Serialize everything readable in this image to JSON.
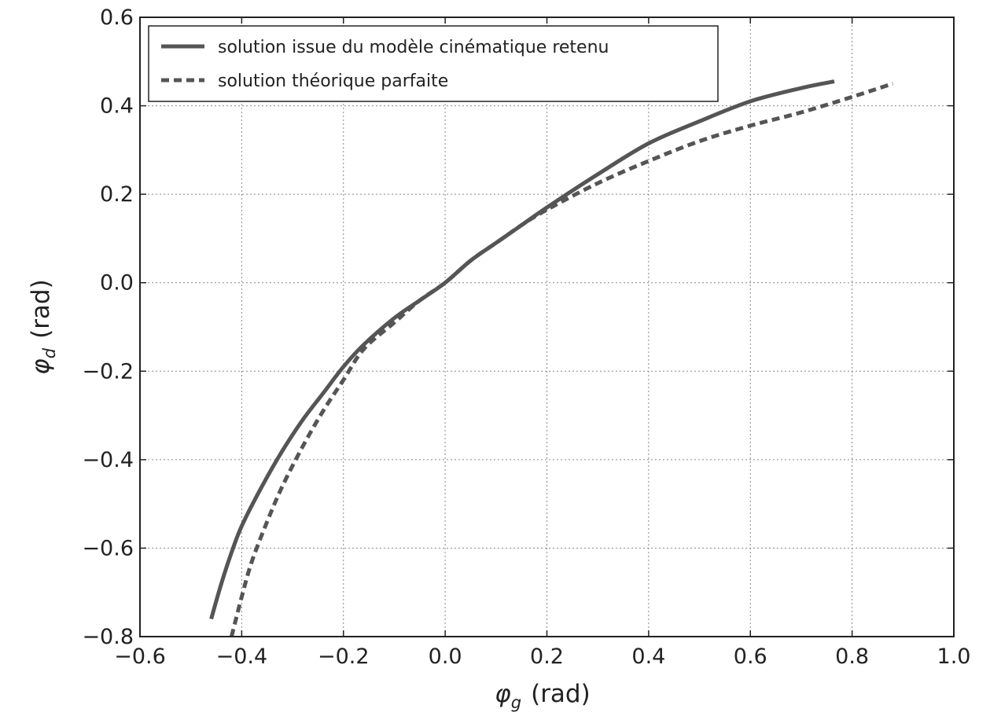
{
  "chart_data": {
    "type": "line",
    "title": "",
    "xlabel": {
      "symbol": "φ",
      "sub": "g",
      "unit": "(rad)"
    },
    "ylabel": {
      "symbol": "φ",
      "sub": "d",
      "unit": "(rad)"
    },
    "xlim": [
      -0.6,
      1.0
    ],
    "ylim": [
      -0.8,
      0.6
    ],
    "xticks": [
      -0.6,
      -0.4,
      -0.2,
      0.0,
      0.2,
      0.4,
      0.6,
      0.8,
      1.0
    ],
    "yticks": [
      -0.8,
      -0.6,
      -0.4,
      -0.2,
      0.0,
      0.2,
      0.4,
      0.6
    ],
    "xtick_labels": [
      "−0.6",
      "−0.4",
      "−0.2",
      "0.0",
      "0.2",
      "0.4",
      "0.6",
      "0.8",
      "1.0"
    ],
    "ytick_labels": [
      "−0.8",
      "−0.6",
      "−0.4",
      "−0.2",
      "0.0",
      "0.2",
      "0.4",
      "0.6"
    ],
    "grid": true,
    "legend_position": "upper-left",
    "series": [
      {
        "name": "solution issue du modèle cinématique retenu",
        "style": "solid",
        "color": "#555555",
        "x": [
          -0.46,
          -0.44,
          -0.42,
          -0.4,
          -0.36,
          -0.32,
          -0.28,
          -0.24,
          -0.2,
          -0.16,
          -0.1,
          -0.05,
          0.0,
          0.05,
          0.1,
          0.15,
          0.2,
          0.3,
          0.4,
          0.5,
          0.6,
          0.7,
          0.765
        ],
        "y": [
          -0.76,
          -0.68,
          -0.61,
          -0.55,
          -0.46,
          -0.38,
          -0.31,
          -0.25,
          -0.19,
          -0.14,
          -0.08,
          -0.04,
          0.0,
          0.05,
          0.09,
          0.13,
          0.17,
          0.245,
          0.315,
          0.365,
          0.41,
          0.44,
          0.455
        ]
      },
      {
        "name": "solution théorique parfaite",
        "style": "dashed",
        "color": "#555555",
        "x": [
          -0.42,
          -0.4,
          -0.38,
          -0.35,
          -0.32,
          -0.28,
          -0.24,
          -0.2,
          -0.16,
          -0.1,
          -0.05,
          0.0,
          0.05,
          0.1,
          0.15,
          0.2,
          0.3,
          0.4,
          0.5,
          0.6,
          0.7,
          0.8,
          0.88
        ],
        "y": [
          -0.8,
          -0.71,
          -0.63,
          -0.54,
          -0.46,
          -0.37,
          -0.29,
          -0.22,
          -0.15,
          -0.09,
          -0.04,
          0.0,
          0.05,
          0.09,
          0.13,
          0.165,
          0.225,
          0.275,
          0.32,
          0.355,
          0.385,
          0.42,
          0.45
        ]
      }
    ]
  }
}
